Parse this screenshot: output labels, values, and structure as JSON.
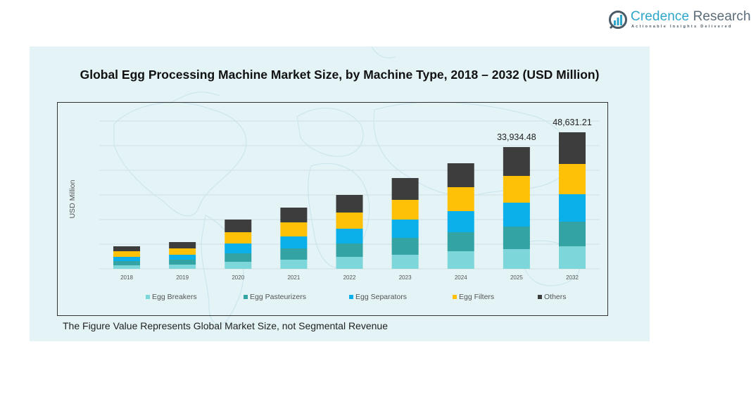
{
  "brand": {
    "name_part1": "Credence",
    "name_part2": " Research",
    "tagline": "Actionable Insights Delivered",
    "icon": "bar-chart-circle-logo-icon",
    "colors": {
      "accent": "#2ea6c9",
      "text": "#5a6b78"
    }
  },
  "footnote": "The Figure Value Represents Global Market Size, not Segmental Revenue",
  "chart_data": {
    "type": "bar",
    "stacked": true,
    "title": "Global Egg Processing Machine Market Size, by Machine Type, 2018 – 2032 (USD Million)",
    "xlabel": "",
    "ylabel": "USD Million",
    "ylim": [
      0,
      55000
    ],
    "grid": true,
    "legend_position": "bottom",
    "categories": [
      "2018",
      "2019",
      "2020",
      "2021",
      "2022",
      "2023",
      "2024",
      "2025",
      "2032"
    ],
    "series": [
      {
        "name": "Egg Breakers",
        "color": "#7dd6d9",
        "values": [
          981,
          1177,
          1962,
          2550,
          3335,
          3923,
          4904,
          5492.3,
          8021.6
        ]
      },
      {
        "name": "Egg Pasteurizers",
        "color": "#33a3a3",
        "values": [
          1177,
          1373,
          2354,
          3138,
          3727,
          4708,
          5296,
          6276.5,
          8773.7
        ]
      },
      {
        "name": "Egg Separators",
        "color": "#0bb0ea",
        "values": [
          1177,
          1373,
          2746,
          3335,
          4119,
          5100,
          5884,
          6669.1,
          9776.4
        ]
      },
      {
        "name": "Egg Filters",
        "color": "#ffc107",
        "values": [
          1569,
          1765,
          3138,
          3923,
          4511,
          5492,
          6669,
          7453.4,
          10779.1
        ]
      },
      {
        "name": "Others",
        "color": "#3d3d3d",
        "values": [
          1373,
          1765,
          3531,
          4119,
          4904,
          6081,
          6669,
          8043.18,
          11280.41
        ]
      }
    ],
    "totals": [
      6277,
      7453,
      13731,
      17065,
      20596,
      25304,
      29422,
      33934.48,
      48631.21
    ],
    "data_labels": [
      {
        "category": "2025",
        "text": "33,934.48"
      },
      {
        "category": "2032",
        "text": "48,631.21"
      }
    ]
  }
}
